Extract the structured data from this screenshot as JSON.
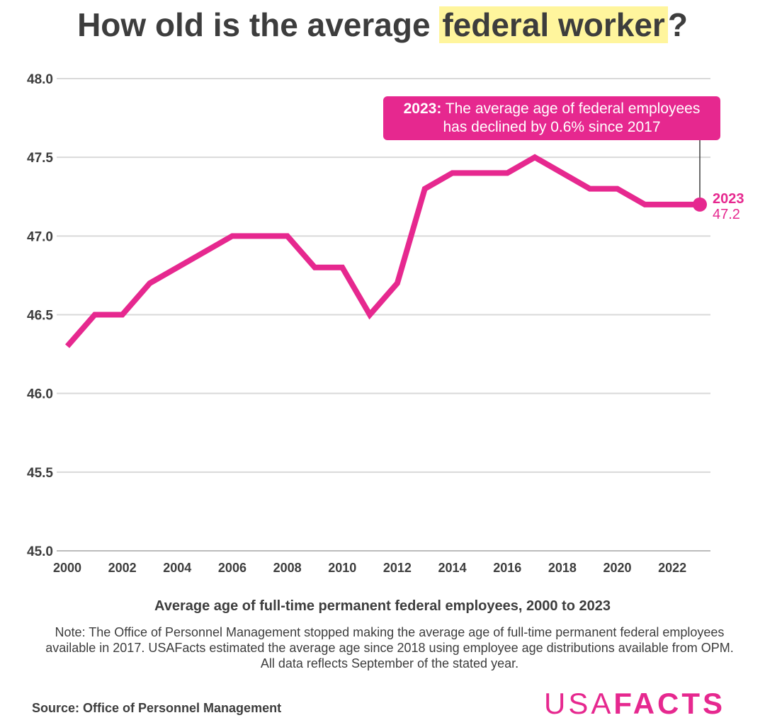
{
  "title": {
    "pre": "How old is the average ",
    "highlight": "federal worker",
    "post": "?"
  },
  "colors": {
    "line": "#e6288f",
    "highlight": "#fff59d",
    "text": "#3d3d3d",
    "grid": "#d9d9d9"
  },
  "annotation": {
    "year": "2023:",
    "text": "The average age of federal employees",
    "text2": "has declined by 0.6% since 2017"
  },
  "end_label": {
    "year": "2023",
    "value": "47.2"
  },
  "subtitle": "Average age of full-time permanent federal employees, 2000 to 2023",
  "note": "Note: The Office of Personnel Management stopped making the average age of full-time permanent federal employees available in 2017. USAFacts estimated the average age since 2018 using employee age distributions available from OPM. All data reflects September of the stated year.",
  "source": "Source: Office of Personnel Management",
  "logo": {
    "a": "USA",
    "b": "FACTS"
  },
  "chart_data": {
    "type": "line",
    "title": "How old is the average federal worker?",
    "xlabel": "",
    "ylabel": "",
    "x": [
      2000,
      2001,
      2002,
      2003,
      2004,
      2005,
      2006,
      2007,
      2008,
      2009,
      2010,
      2011,
      2012,
      2013,
      2014,
      2015,
      2016,
      2017,
      2018,
      2019,
      2020,
      2021,
      2022,
      2023
    ],
    "series": [
      {
        "values": [
          46.3,
          46.5,
          46.5,
          46.7,
          46.8,
          46.9,
          47.0,
          47.0,
          47.0,
          46.8,
          46.8,
          46.5,
          46.7,
          47.3,
          47.4,
          47.4,
          47.4,
          47.5,
          47.4,
          47.3,
          47.3,
          47.2,
          47.2,
          47.2
        ]
      }
    ],
    "xlim": [
      2000,
      2023
    ],
    "ylim": [
      45.0,
      48.0
    ],
    "yticks": [
      "45.0",
      "45.5",
      "46.0",
      "46.5",
      "47.0",
      "47.5",
      "48.0"
    ],
    "xticks": [
      "2000",
      "2002",
      "2004",
      "2006",
      "2008",
      "2010",
      "2012",
      "2014",
      "2016",
      "2018",
      "2020",
      "2022"
    ],
    "grid": "horizontal",
    "legend": "none"
  }
}
